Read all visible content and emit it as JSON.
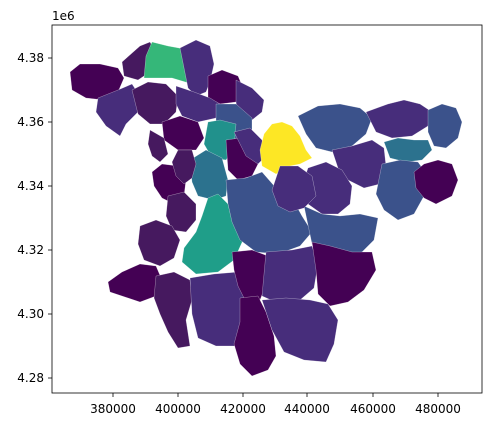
{
  "chart_data": {
    "type": "choropleth",
    "colormap": "viridis",
    "x_axis": {
      "ticks": [
        380000,
        400000,
        420000,
        440000,
        460000,
        480000
      ],
      "tick_labels": [
        "380000",
        "400000",
        "420000",
        "440000",
        "460000",
        "480000"
      ],
      "range": [
        363000,
        490000
      ]
    },
    "y_axis": {
      "ticks": [
        4.28,
        4.3,
        4.32,
        4.34,
        4.36,
        4.38
      ],
      "tick_labels": [
        "4.28",
        "4.30",
        "4.32",
        "4.34",
        "4.36",
        "4.38"
      ],
      "offset_label": "1e6",
      "range": [
        4.275,
        4.391
      ]
    },
    "grid": false,
    "legend": "none",
    "colors": {
      "dark_purple": "#440154",
      "purple": "#46195f",
      "indigo": "#472d7b",
      "slate_blue": "#3b528b",
      "blue": "#3e4a89",
      "teal_blue": "#2c728e",
      "teal": "#21918c",
      "teal_green": "#1f9e89",
      "green": "#35b779",
      "yellow": "#fde725"
    }
  }
}
